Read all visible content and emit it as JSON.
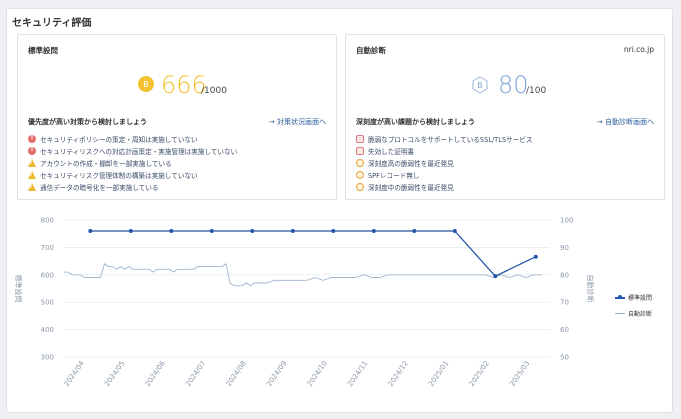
{
  "page": {
    "title": "セキュリティ評価"
  },
  "standard_card": {
    "title": "標準設問",
    "badge_letter": "B",
    "score": "666",
    "out_of": "/1000",
    "accent_color": "#f2c230",
    "section_title": "優先度が高い対策から検討しましょう",
    "link": "→ 対策状況画面へ",
    "items": [
      {
        "icon": "error-circle-icon",
        "text": "セキュリティポリシーの策定・周知は実施していない"
      },
      {
        "icon": "error-circle-icon",
        "text": "セキュリティリスクへの対応計画策定・実施管理は実施していない"
      },
      {
        "icon": "warning-triangle-icon",
        "text": "アカウントの作成・棚卸を一部実施している"
      },
      {
        "icon": "warning-triangle-icon",
        "text": "セキュリティリスク管理体制の構築は実施していない"
      },
      {
        "icon": "warning-triangle-icon",
        "text": "通信データの暗号化を一部実施している"
      }
    ]
  },
  "auto_card": {
    "title": "自動診断",
    "domain": "nri.co.jp",
    "badge_letter": "B",
    "score": "80",
    "out_of": "/100",
    "accent_color": "#7fa6d6",
    "section_title": "深刻度が高い課題から検討しましょう",
    "link": "→ 自動診断画面へ",
    "items": [
      {
        "icon": "octagon-alert-icon",
        "text": "脆弱なプロトコルをサポートしているSSL/TLSサービス"
      },
      {
        "icon": "octagon-alert-icon",
        "text": "失効した証明書"
      },
      {
        "icon": "hexagon-alert-icon",
        "text": "深刻度高の脆弱性を最近発見"
      },
      {
        "icon": "hexagon-alert-icon",
        "text": "SPFレコード無し"
      },
      {
        "icon": "hexagon-alert-icon",
        "text": "深刻度中の脆弱性を最近発見"
      }
    ]
  },
  "chart_data": {
    "type": "line",
    "x_labels": [
      "2024/04",
      "2024/05",
      "2024/06",
      "2024/07",
      "2024/08",
      "2024/09",
      "2024/10",
      "2024/11",
      "2024/12",
      "2025/01",
      "2025/02",
      "2025/03"
    ],
    "left_axis": {
      "label": "標準設問",
      "ticks": [
        300,
        400,
        500,
        600,
        700,
        800
      ],
      "ylim": [
        300,
        800
      ]
    },
    "right_axis": {
      "label": "自動診断",
      "ticks": [
        50,
        60,
        70,
        80,
        90,
        100
      ],
      "ylim": [
        50,
        100
      ]
    },
    "series": [
      {
        "name": "標準設問",
        "axis": "left",
        "color": "#2457a8",
        "x": [
          0.65,
          1.65,
          2.65,
          3.65,
          4.65,
          5.65,
          6.65,
          7.65,
          8.65,
          9.65,
          10.65,
          11.65
        ],
        "values": [
          760,
          760,
          760,
          760,
          760,
          760,
          760,
          760,
          760,
          760,
          595,
          666
        ]
      },
      {
        "name": "自動診断",
        "axis": "right",
        "color": "#9fb3cb",
        "x": [
          0.0,
          0.1,
          0.2,
          0.3,
          0.4,
          0.5,
          0.6,
          0.7,
          0.8,
          0.9,
          1.0,
          1.1,
          1.2,
          1.3,
          1.4,
          1.5,
          1.6,
          1.7,
          1.8,
          1.9,
          2.0,
          2.1,
          2.2,
          2.3,
          2.4,
          2.5,
          2.6,
          2.7,
          2.8,
          2.9,
          3.0,
          3.1,
          3.2,
          3.3,
          3.4,
          3.5,
          3.6,
          3.7,
          3.8,
          3.9,
          4.0,
          4.1,
          4.2,
          4.3,
          4.4,
          4.5,
          4.6,
          4.7,
          4.8,
          4.9,
          5.0,
          5.2,
          5.4,
          5.6,
          5.8,
          6.0,
          6.2,
          6.4,
          6.6,
          6.8,
          7.0,
          7.2,
          7.4,
          7.6,
          7.8,
          8.0,
          8.2,
          8.4,
          8.6,
          8.8,
          9.0,
          9.2,
          9.4,
          9.6,
          9.8,
          10.0,
          10.2,
          10.4,
          10.6,
          10.8,
          11.0,
          11.2,
          11.4,
          11.6,
          11.8
        ],
        "values": [
          81,
          81,
          80,
          80,
          80,
          79,
          79,
          79,
          79,
          79,
          84,
          83,
          83,
          82,
          83,
          82,
          83,
          82,
          82,
          82,
          82,
          82,
          81,
          82,
          82,
          82,
          82,
          81,
          82,
          82,
          82,
          82,
          82,
          83,
          83,
          83,
          83,
          83,
          83,
          83,
          84,
          77,
          76,
          76,
          76,
          77,
          76,
          77,
          77,
          77,
          77,
          78,
          78,
          78,
          78,
          78,
          79,
          78,
          79,
          79,
          79,
          79,
          80,
          79,
          79,
          80,
          80,
          80,
          80,
          80,
          80,
          80,
          80,
          80,
          80,
          80,
          80,
          80,
          79,
          80,
          79,
          80,
          79,
          80,
          80
        ]
      }
    ],
    "grid": true,
    "legend": "right"
  }
}
